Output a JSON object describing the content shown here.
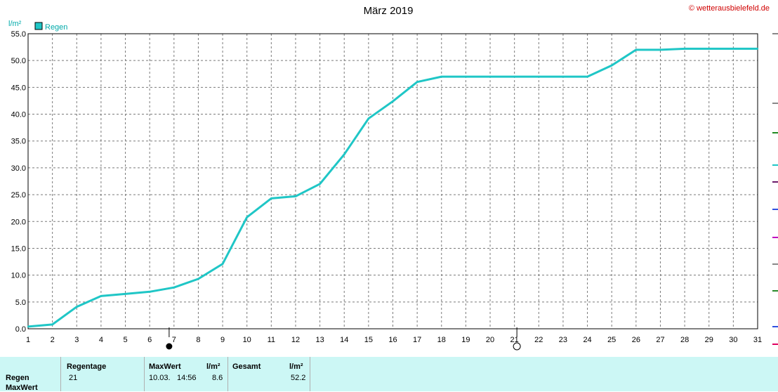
{
  "header": {
    "title": "März 2019",
    "copyright": "© wetterausbielefeld.de",
    "unit_label": "l/m²",
    "legend_label": "Regen"
  },
  "colors": {
    "series": "#1fc6c6",
    "copyright": "#d00000",
    "stats_bg": "#ccf7f5"
  },
  "chart_data": {
    "type": "line",
    "title": "März 2019",
    "xlabel": "",
    "ylabel": "l/m²",
    "ylim": [
      0,
      55
    ],
    "xlim": [
      1,
      31
    ],
    "grid": true,
    "legend": "top-left",
    "y_ticks": [
      "0.0",
      "5.0",
      "10.0",
      "15.0",
      "20.0",
      "25.0",
      "30.0",
      "35.0",
      "40.0",
      "45.0",
      "50.0",
      "55.0"
    ],
    "x_ticks": [
      "1",
      "2",
      "3",
      "4",
      "5",
      "6",
      "7",
      "8",
      "9",
      "10",
      "11",
      "12",
      "13",
      "14",
      "15",
      "16",
      "17",
      "18",
      "19",
      "20",
      "21",
      "22",
      "23",
      "24",
      "25",
      "26",
      "27",
      "28",
      "29",
      "30",
      "31"
    ],
    "series": [
      {
        "name": "Regen",
        "x": [
          1,
          2,
          3,
          4,
          5,
          6,
          7,
          8,
          9,
          10,
          11,
          12,
          13,
          14,
          15,
          16,
          17,
          18,
          19,
          20,
          21,
          22,
          23,
          24,
          25,
          26,
          27,
          28,
          29,
          30,
          31
        ],
        "values": [
          0.4,
          0.8,
          4.1,
          6.1,
          6.5,
          6.9,
          7.7,
          9.3,
          12.1,
          20.8,
          24.3,
          24.7,
          27.0,
          32.5,
          39.2,
          42.4,
          46.0,
          47.0,
          47.0,
          47.0,
          47.0,
          47.0,
          47.0,
          47.0,
          49.1,
          52.0,
          52.0,
          52.2,
          52.2,
          52.2,
          52.2
        ]
      }
    ],
    "moon_phases": [
      {
        "day": 6.8,
        "phase": "new"
      },
      {
        "day": 21.1,
        "phase": "full"
      }
    ]
  },
  "stats": {
    "row_labels": [
      "Regen",
      "MaxWert"
    ],
    "headers": {
      "days": "Regentage",
      "max": "MaxWert",
      "max_unit": "l/m²",
      "total": "Gesamt",
      "total_unit": "l/m²"
    },
    "values": {
      "days": "21",
      "max_date": "10.03.",
      "max_time": "14:56",
      "max_value": "8.6",
      "total": "52.2"
    }
  }
}
